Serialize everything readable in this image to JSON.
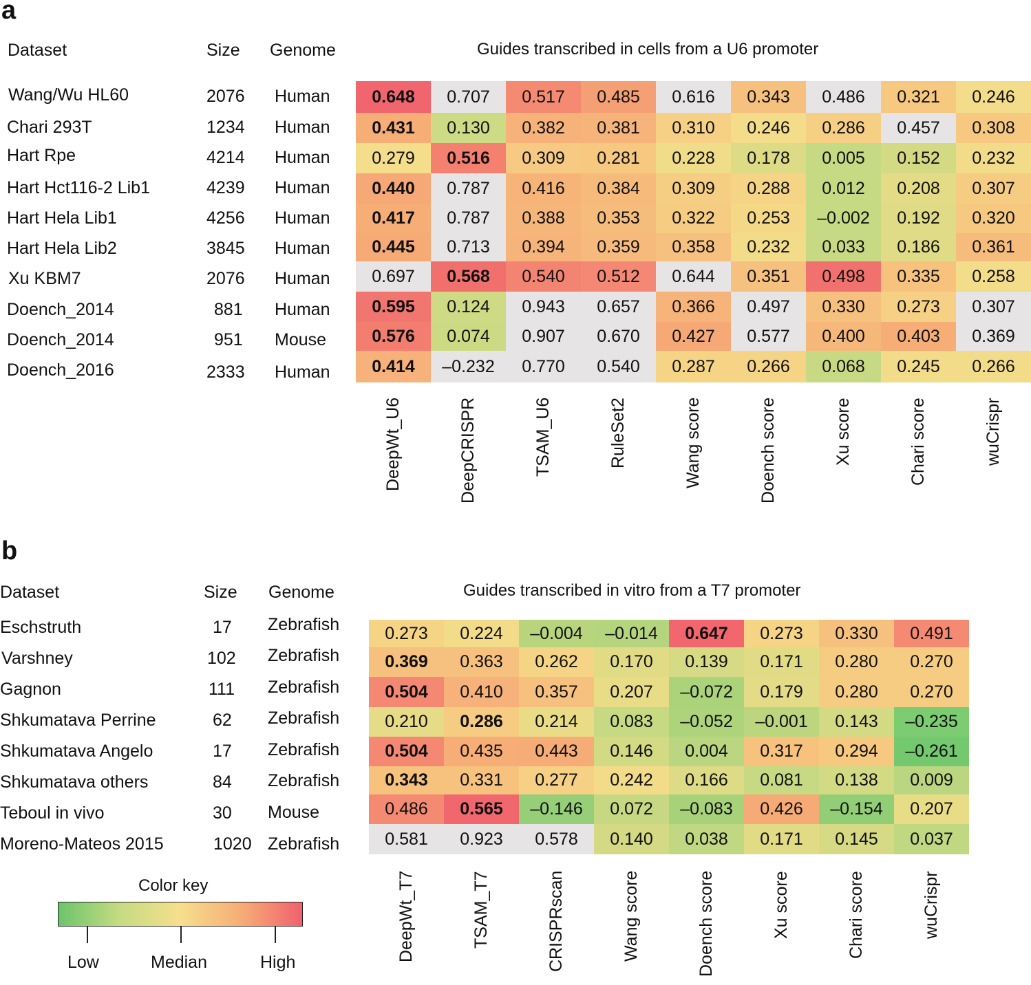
{
  "panel_a": {
    "label": "a",
    "headers": {
      "dataset": "Dataset",
      "size": "Size",
      "genome": "Genome"
    },
    "title": "Guides transcribed in cells from a U6 promoter",
    "rows": [
      {
        "dataset": "Wang/Wu HL60",
        "size": "2076",
        "genome": "Human"
      },
      {
        "dataset": "Chari 293T",
        "size": "1234",
        "genome": "Human"
      },
      {
        "dataset": "Hart Rpe",
        "size": "4214",
        "genome": "Human"
      },
      {
        "dataset": "Hart Hct116-2 Lib1",
        "size": "4239",
        "genome": "Human"
      },
      {
        "dataset": "Hart Hela Lib1",
        "size": "4256",
        "genome": "Human"
      },
      {
        "dataset": "Hart Hela Lib2",
        "size": "3845",
        "genome": "Human"
      },
      {
        "dataset": "Xu KBM7",
        "size": "2076",
        "genome": "Human"
      },
      {
        "dataset": "Doench_2014",
        "size": "881",
        "genome": "Human"
      },
      {
        "dataset": "Doench_2014",
        "size": "951",
        "genome": "Mouse"
      },
      {
        "dataset": "Doench_2016",
        "size": "2333",
        "genome": "Human"
      }
    ]
  },
  "panel_b": {
    "label": "b",
    "headers": {
      "dataset": "Dataset",
      "size": "Size",
      "genome": "Genome"
    },
    "title": "Guides transcribed in vitro from a T7 promoter",
    "rows": [
      {
        "dataset": "Eschstruth",
        "size": "17",
        "genome": "Zebrafish"
      },
      {
        "dataset": "Varshney",
        "size": "102",
        "genome": "Zebrafish"
      },
      {
        "dataset": "Gagnon",
        "size": "111",
        "genome": "Zebrafish"
      },
      {
        "dataset": "Shkumatava Perrine",
        "size": "62",
        "genome": "Zebrafish"
      },
      {
        "dataset": "Shkumatava Angelo",
        "size": "17",
        "genome": "Zebrafish"
      },
      {
        "dataset": "Shkumatava others",
        "size": "84",
        "genome": "Zebrafish"
      },
      {
        "dataset": "Teboul in vivo",
        "size": "30",
        "genome": "Mouse"
      },
      {
        "dataset": "Moreno-Mateos 2015",
        "size": "1020",
        "genome": "Zebrafish"
      }
    ]
  },
  "color_key": {
    "title": "Color key",
    "labels": [
      "Low",
      "Median",
      "High"
    ],
    "colors": {
      "low": "#6cc46b",
      "median": "#f6df8d",
      "high": "#f1616e",
      "na": "#e6e4e4"
    }
  },
  "chart_data": [
    {
      "type": "heatmap",
      "title": "Guides transcribed in cells from a U6 promoter",
      "columns": [
        "DeepWt_U6",
        "DeepCRISPR",
        "TSAM_U6",
        "RuleSet2",
        "Wang score",
        "Doench score",
        "Xu score",
        "Chari score",
        "wuCrispr"
      ],
      "rows": [
        "Wang/Wu HL60",
        "Chari 293T",
        "Hart Rpe",
        "Hart Hct116-2 Lib1",
        "Hart Hela Lib1",
        "Hart Hela Lib2",
        "Xu KBM7",
        "Doench_2014",
        "Doench_2014",
        "Doench_2016"
      ],
      "values": [
        [
          "0.648",
          "0.707",
          "0.517",
          "0.485",
          "0.616",
          "0.343",
          "0.486",
          "0.321",
          "0.246"
        ],
        [
          "0.431",
          "0.130",
          "0.382",
          "0.381",
          "0.310",
          "0.246",
          "0.286",
          "0.457",
          "0.308"
        ],
        [
          "0.279",
          "0.516",
          "0.309",
          "0.281",
          "0.228",
          "0.178",
          "0.005",
          "0.152",
          "0.232"
        ],
        [
          "0.440",
          "0.787",
          "0.416",
          "0.384",
          "0.309",
          "0.288",
          "0.012",
          "0.208",
          "0.307"
        ],
        [
          "0.417",
          "0.787",
          "0.388",
          "0.353",
          "0.322",
          "0.253",
          "–0.002",
          "0.192",
          "0.320"
        ],
        [
          "0.445",
          "0.713",
          "0.394",
          "0.359",
          "0.358",
          "0.232",
          "0.033",
          "0.186",
          "0.361"
        ],
        [
          "0.697",
          "0.568",
          "0.540",
          "0.512",
          "0.644",
          "0.351",
          "0.498",
          "0.335",
          "0.258"
        ],
        [
          "0.595",
          "0.124",
          "0.943",
          "0.657",
          "0.366",
          "0.497",
          "0.330",
          "0.273",
          "0.307"
        ],
        [
          "0.576",
          "0.074",
          "0.907",
          "0.670",
          "0.427",
          "0.577",
          "0.400",
          "0.403",
          "0.369"
        ],
        [
          "0.414",
          "–0.232",
          "0.770",
          "0.540",
          "0.287",
          "0.266",
          "0.068",
          "0.245",
          "0.266"
        ]
      ],
      "colors": [
        [
          "#f1656e",
          "#e6e4e4",
          "#f48a72",
          "#f5a074",
          "#e6e4e4",
          "#f6c07e",
          "#e6e4e4",
          "#f6c880",
          "#f3dc8a"
        ],
        [
          "#f6ad76",
          "#cddb84",
          "#f6b278",
          "#f6b37a",
          "#f6d185",
          "#f3dc8a",
          "#f6ce84",
          "#e6e4e4",
          "#f6c880"
        ],
        [
          "#f4dd8b",
          "#f48070",
          "#f6ca82",
          "#f6c880",
          "#f0dd89",
          "#dddb85",
          "#c6d983",
          "#d4da84",
          "#f2dc89"
        ],
        [
          "#f6a876",
          "#e6e4e4",
          "#f6b478",
          "#f6ba7a",
          "#f6ce83",
          "#f6d486",
          "#c6d983",
          "#e4db86",
          "#f6cc82"
        ],
        [
          "#f6ad76",
          "#e6e4e4",
          "#f6b67a",
          "#f6bc7c",
          "#f6cc82",
          "#f5d886",
          "#c6d983",
          "#e0db86",
          "#f6c880"
        ],
        [
          "#f6aa76",
          "#e6e4e4",
          "#f6b47a",
          "#f6ba7c",
          "#f6c07e",
          "#f2dc89",
          "#c8d983",
          "#dfdb86",
          "#f6bc7c"
        ],
        [
          "#e6e4e4",
          "#f1706e",
          "#f48472",
          "#f48874",
          "#e6e4e4",
          "#f6c07e",
          "#f1716e",
          "#f6c27e",
          "#f3dc8a"
        ],
        [
          "#f27670",
          "#cedb84",
          "#e6e4e4",
          "#e6e4e4",
          "#f6b47a",
          "#e6e4e4",
          "#f6c07e",
          "#f6d084",
          "#e6e4e4"
        ],
        [
          "#f37e70",
          "#ccda83",
          "#e6e4e4",
          "#e6e4e4",
          "#f6a876",
          "#e6e4e4",
          "#f6b87a",
          "#f6ad76",
          "#e6e4e4"
        ],
        [
          "#f6b27a",
          "#e6e4e4",
          "#e6e4e4",
          "#e6e4e4",
          "#f6d486",
          "#f6d486",
          "#c8d983",
          "#f3dc89",
          "#f3dc89"
        ]
      ],
      "bold": [
        [
          1,
          0,
          0,
          0,
          0,
          0,
          0,
          0,
          0
        ],
        [
          1,
          0,
          0,
          0,
          0,
          0,
          0,
          0,
          0
        ],
        [
          0,
          1,
          0,
          0,
          0,
          0,
          0,
          0,
          0
        ],
        [
          1,
          0,
          0,
          0,
          0,
          0,
          0,
          0,
          0
        ],
        [
          1,
          0,
          0,
          0,
          0,
          0,
          0,
          0,
          0
        ],
        [
          1,
          0,
          0,
          0,
          0,
          0,
          0,
          0,
          0
        ],
        [
          0,
          1,
          0,
          0,
          0,
          0,
          0,
          0,
          0
        ],
        [
          1,
          0,
          0,
          0,
          0,
          0,
          0,
          0,
          0
        ],
        [
          1,
          0,
          0,
          0,
          0,
          0,
          0,
          0,
          0
        ],
        [
          1,
          0,
          0,
          0,
          0,
          0,
          0,
          0,
          0
        ]
      ]
    },
    {
      "type": "heatmap",
      "title": "Guides transcribed in vitro from a T7 promoter",
      "columns": [
        "DeepWt_T7",
        "TSAM_T7",
        "CRISPRscan",
        "Wang score",
        "Doench score",
        "Xu score",
        "Chari score",
        "wuCrispr"
      ],
      "rows": [
        "Eschstruth",
        "Varshney",
        "Gagnon",
        "Shkumatava Perrine",
        "Shkumatava Angelo",
        "Shkumatava others",
        "Teboul in vivo",
        "Moreno-Mateos 2015"
      ],
      "values": [
        [
          "0.273",
          "0.224",
          "–0.004",
          "–0.014",
          "0.647",
          "0.273",
          "0.330",
          "0.491"
        ],
        [
          "0.369",
          "0.363",
          "0.262",
          "0.170",
          "0.139",
          "0.171",
          "0.280",
          "0.270"
        ],
        [
          "0.504",
          "0.410",
          "0.357",
          "0.207",
          "–0.072",
          "0.179",
          "0.280",
          "0.270"
        ],
        [
          "0.210",
          "0.286",
          "0.214",
          "0.083",
          "–0.052",
          "–0.001",
          "0.143",
          "–0.235"
        ],
        [
          "0.504",
          "0.435",
          "0.443",
          "0.146",
          "0.004",
          "0.317",
          "0.294",
          "–0.261"
        ],
        [
          "0.343",
          "0.331",
          "0.277",
          "0.242",
          "0.166",
          "0.081",
          "0.138",
          "0.009"
        ],
        [
          "0.486",
          "0.565",
          "–0.146",
          "0.072",
          "–0.083",
          "0.426",
          "–0.154",
          "0.207"
        ],
        [
          "0.581",
          "0.923",
          "0.578",
          "0.140",
          "0.038",
          "0.171",
          "0.145",
          "0.037"
        ]
      ],
      "colors": [
        [
          "#f6d486",
          "#f3dc89",
          "#b8d57e",
          "#b4d47e",
          "#f2666e",
          "#f6d486",
          "#f6c07e",
          "#f48a72"
        ],
        [
          "#f6c07e",
          "#f6c07e",
          "#f6d486",
          "#e2db86",
          "#d6da84",
          "#e2db86",
          "#f6cc82",
          "#f6cc82"
        ],
        [
          "#f48872",
          "#f6b27a",
          "#f6c07e",
          "#e9dc87",
          "#aad37a",
          "#e4db86",
          "#f6cc82",
          "#f6cc82"
        ],
        [
          "#e6db86",
          "#f6cc82",
          "#eadc87",
          "#c8d983",
          "#aed47b",
          "#bcd680",
          "#d4da84",
          "#7ccc72"
        ],
        [
          "#f48872",
          "#f6ad76",
          "#f6ac76",
          "#d2da84",
          "#bad680",
          "#f6c27e",
          "#f6c880",
          "#74c96f"
        ],
        [
          "#f6c27e",
          "#f6c27e",
          "#f6d084",
          "#f2dc89",
          "#dedb86",
          "#c8d983",
          "#d2da84",
          "#bad680"
        ],
        [
          "#f48a72",
          "#f1676e",
          "#96cf77",
          "#c6d982",
          "#a8d27a",
          "#f6aa76",
          "#92ce76",
          "#e9dc87"
        ],
        [
          "#e6e4e4",
          "#e6e4e4",
          "#e6e4e4",
          "#d4da84",
          "#c0d881",
          "#e2db86",
          "#d6da84",
          "#c0d881"
        ]
      ],
      "bold": [
        [
          0,
          0,
          0,
          0,
          1,
          0,
          0,
          0
        ],
        [
          1,
          0,
          0,
          0,
          0,
          0,
          0,
          0
        ],
        [
          1,
          0,
          0,
          0,
          0,
          0,
          0,
          0
        ],
        [
          0,
          1,
          0,
          0,
          0,
          0,
          0,
          0
        ],
        [
          1,
          0,
          0,
          0,
          0,
          0,
          0,
          0
        ],
        [
          1,
          0,
          0,
          0,
          0,
          0,
          0,
          0
        ],
        [
          0,
          1,
          0,
          0,
          0,
          0,
          0,
          0
        ],
        [
          0,
          0,
          0,
          0,
          0,
          0,
          0,
          0
        ]
      ]
    }
  ]
}
